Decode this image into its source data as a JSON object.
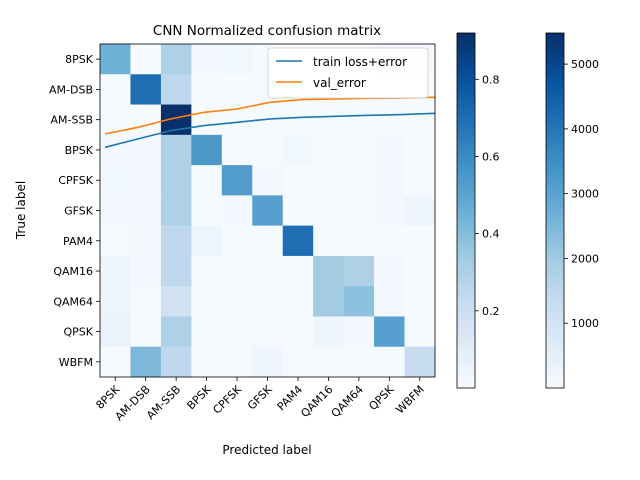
{
  "chart_data": {
    "type": "heatmap",
    "title": "CNN Normalized confusion matrix",
    "xlabel": "Predicted label",
    "ylabel": "True label",
    "categories": [
      "8PSK",
      "AM-DSB",
      "AM-SSB",
      "BPSK",
      "CPFSK",
      "GFSK",
      "PAM4",
      "QAM16",
      "QAM64",
      "QPSK",
      "WBFM"
    ],
    "matrix": [
      [
        0.45,
        0.01,
        0.3,
        0.02,
        0.03,
        0.01,
        0.01,
        0.01,
        0.01,
        0.02,
        0.02
      ],
      [
        0.01,
        0.7,
        0.25,
        0.01,
        0.01,
        0.01,
        0.0,
        0.0,
        0.0,
        0.01,
        0.0
      ],
      [
        0.01,
        0.01,
        0.92,
        0.01,
        0.01,
        0.01,
        0.01,
        0.01,
        0.01,
        0.01,
        0.01
      ],
      [
        0.02,
        0.02,
        0.3,
        0.55,
        0.01,
        0.01,
        0.03,
        0.01,
        0.01,
        0.02,
        0.01
      ],
      [
        0.03,
        0.02,
        0.3,
        0.01,
        0.53,
        0.02,
        0.01,
        0.01,
        0.01,
        0.02,
        0.01
      ],
      [
        0.02,
        0.02,
        0.3,
        0.01,
        0.02,
        0.52,
        0.01,
        0.01,
        0.01,
        0.02,
        0.04
      ],
      [
        0.01,
        0.02,
        0.25,
        0.05,
        0.01,
        0.01,
        0.7,
        0.01,
        0.01,
        0.01,
        0.01
      ],
      [
        0.05,
        0.02,
        0.25,
        0.01,
        0.01,
        0.01,
        0.01,
        0.33,
        0.3,
        0.02,
        0.01
      ],
      [
        0.05,
        0.01,
        0.18,
        0.01,
        0.01,
        0.01,
        0.01,
        0.33,
        0.38,
        0.02,
        0.01
      ],
      [
        0.06,
        0.01,
        0.3,
        0.01,
        0.01,
        0.01,
        0.01,
        0.04,
        0.02,
        0.52,
        0.01
      ],
      [
        0.01,
        0.42,
        0.25,
        0.01,
        0.01,
        0.04,
        0.01,
        0.01,
        0.01,
        0.01,
        0.22
      ]
    ],
    "series": [
      {
        "name": "train loss+error",
        "color": "#1f77b4",
        "values": [
          0.25,
          0.275,
          0.3,
          0.315,
          0.325,
          0.335,
          0.34,
          0.343,
          0.346,
          0.348,
          0.352
        ]
      },
      {
        "name": "val_error",
        "color": "#ff7f0e",
        "values": [
          0.29,
          0.31,
          0.335,
          0.355,
          0.365,
          0.385,
          0.393,
          0.395,
          0.397,
          0.398,
          0.4
        ]
      }
    ],
    "legend_position": "top-right",
    "colorbar_1": {
      "range": [
        0.0,
        0.92
      ],
      "ticks": [
        "0.2",
        "0.4",
        "0.6",
        "0.8"
      ]
    },
    "colorbar_2": {
      "range": [
        0,
        5480
      ],
      "ticks": [
        "1000",
        "2000",
        "3000",
        "4000",
        "5000"
      ]
    },
    "colormap": "Blues"
  }
}
